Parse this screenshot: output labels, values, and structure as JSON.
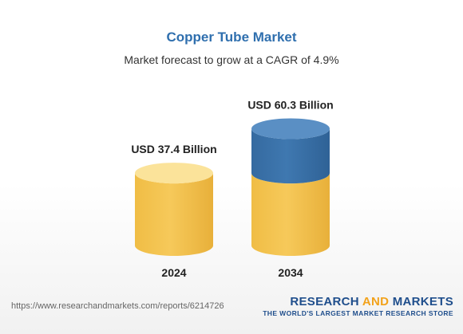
{
  "header": {
    "title": "Copper Tube Market",
    "subtitle": "Market forecast to grow at a CAGR of 4.9%"
  },
  "chart_data": {
    "type": "bar",
    "categories": [
      "2024",
      "2034"
    ],
    "values": [
      37.4,
      60.3
    ],
    "value_labels": [
      "USD 37.4 Billion",
      "USD 60.3 Billion"
    ],
    "base_value": 37.4,
    "unit": "USD Billion",
    "grid": false,
    "colors": {
      "base": "#f6c95a",
      "base_top": "#fbe39a",
      "growth": "#3f78b0",
      "growth_top": "#5a8fc4"
    }
  },
  "footer": {
    "source_url": "https://www.researchandmarkets.com/reports/6214726",
    "brand_part1": "RESEARCH ",
    "brand_part2": "AND",
    "brand_part3": " MARKETS",
    "brand_tagline": "THE WORLD'S LARGEST MARKET RESEARCH STORE"
  }
}
